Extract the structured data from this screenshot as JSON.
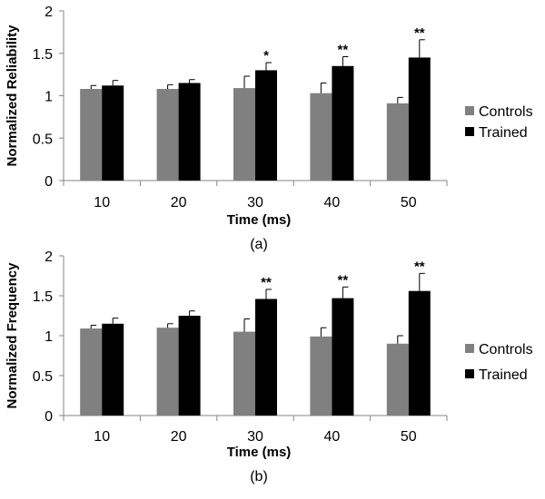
{
  "colors": {
    "controls": "#808080",
    "trained": "#000000",
    "axis": "#868686",
    "error_bar": "#000000"
  },
  "chart_data": [
    {
      "type": "bar",
      "caption": "(a)",
      "categories": [
        "10",
        "20",
        "30",
        "40",
        "50"
      ],
      "series": [
        {
          "name": "Controls",
          "values": [
            1.08,
            1.08,
            1.09,
            1.03,
            0.91
          ],
          "errors": [
            0.04,
            0.05,
            0.14,
            0.12,
            0.07
          ]
        },
        {
          "name": "Trained",
          "values": [
            1.12,
            1.15,
            1.3,
            1.35,
            1.45
          ],
          "errors": [
            0.06,
            0.04,
            0.09,
            0.11,
            0.21
          ]
        }
      ],
      "significance": [
        "",
        "",
        "*",
        "**",
        "**"
      ],
      "xlabel": "Time (ms)",
      "ylabel": "Normalized Reliability",
      "ylim": [
        0,
        2
      ],
      "yticks": [
        "0",
        "0.5",
        "1",
        "1.5",
        "2"
      ],
      "legend": "right"
    },
    {
      "type": "bar",
      "caption": "(b)",
      "categories": [
        "10",
        "20",
        "30",
        "40",
        "50"
      ],
      "series": [
        {
          "name": "Controls",
          "values": [
            1.09,
            1.1,
            1.05,
            0.99,
            0.9
          ],
          "errors": [
            0.04,
            0.05,
            0.16,
            0.11,
            0.1
          ]
        },
        {
          "name": "Trained",
          "values": [
            1.15,
            1.25,
            1.46,
            1.47,
            1.56
          ],
          "errors": [
            0.07,
            0.06,
            0.12,
            0.14,
            0.22
          ]
        }
      ],
      "significance": [
        "",
        "",
        "**",
        "**",
        "**"
      ],
      "xlabel": "Time (ms)",
      "ylabel": "Normalized Frequency",
      "ylim": [
        0,
        2
      ],
      "yticks": [
        "0",
        "0.5",
        "1",
        "1.5",
        "2"
      ],
      "legend": "right"
    }
  ]
}
